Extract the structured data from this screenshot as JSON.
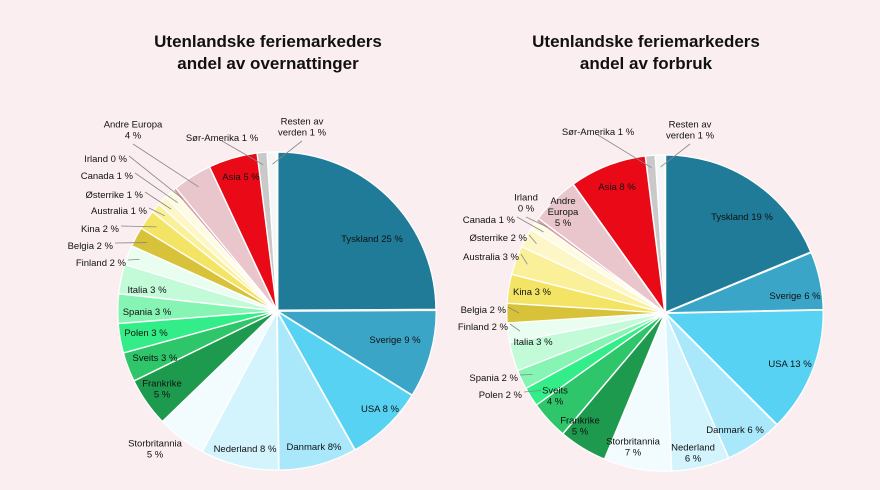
{
  "chart_data": [
    {
      "type": "pie",
      "title": "Utenlandske feriemarkeders andel av overnattinger",
      "title_lines": [
        "Utenlandske feriemarkeders",
        "andel av overnattinger"
      ],
      "slices": [
        {
          "name": "Tyskland",
          "value": 25,
          "label": [
            "Tyskland 25 %"
          ],
          "color": "#1f7b98",
          "text_color": "#ffffff"
        },
        {
          "name": "Sverige",
          "value": 9,
          "label": [
            "Sverige 9 %"
          ],
          "color": "#3aa5c6",
          "text_color": "#ffffff"
        },
        {
          "name": "USA",
          "value": 8,
          "label": [
            "USA 8 %"
          ],
          "color": "#57d2f2",
          "text_color": "#111111"
        },
        {
          "name": "Danmark",
          "value": 8,
          "label": [
            "Danmark 8%"
          ],
          "color": "#a9e8fb",
          "text_color": "#111111"
        },
        {
          "name": "Nederland",
          "value": 8,
          "label": [
            "Nederland 8 %"
          ],
          "color": "#d3f3fd",
          "text_color": "#111111"
        },
        {
          "name": "Storbritannia",
          "value": 5,
          "label": [
            "Storbritannia",
            "5 %"
          ],
          "color": "#f2fbfe",
          "text_color": "#111111"
        },
        {
          "name": "Frankrike",
          "value": 5,
          "label": [
            "Frankrike",
            "5 %"
          ],
          "color": "#1e9a4e",
          "text_color": "#ffffff"
        },
        {
          "name": "Sveits",
          "value": 3,
          "label": [
            "Sveits 3 %"
          ],
          "color": "#2fc56a",
          "text_color": "#ffffff"
        },
        {
          "name": "Polen",
          "value": 3,
          "label": [
            "Polen 3 %"
          ],
          "color": "#33ee88",
          "text_color": "#111111"
        },
        {
          "name": "Spania",
          "value": 3,
          "label": [
            "Spania 3 %"
          ],
          "color": "#86f5b4",
          "text_color": "#111111"
        },
        {
          "name": "Italia",
          "value": 3,
          "label": [
            "Italia 3 %"
          ],
          "color": "#c3fbd9",
          "text_color": "#111111"
        },
        {
          "name": "Finland",
          "value": 2,
          "label": [
            "Finland 2 %"
          ],
          "color": "#eafdf1",
          "text_color": "#111111"
        },
        {
          "name": "Belgia",
          "value": 2,
          "label": [
            "Belgia 2 %"
          ],
          "color": "#d8c23a",
          "text_color": "#111111"
        },
        {
          "name": "Kina",
          "value": 2,
          "label": [
            "Kina 2 %"
          ],
          "color": "#f3e465",
          "text_color": "#111111"
        },
        {
          "name": "Australia",
          "value": 1,
          "label": [
            "Australia 1 %"
          ],
          "color": "#fbf09a",
          "text_color": "#111111"
        },
        {
          "name": "Østerrike",
          "value": 1,
          "label": [
            "Østerrike 1 %"
          ],
          "color": "#fdf6c6",
          "text_color": "#111111"
        },
        {
          "name": "Canada",
          "value": 1,
          "label": [
            "Canada 1 %"
          ],
          "color": "#fefbe3",
          "text_color": "#111111"
        },
        {
          "name": "Irland",
          "value": 0,
          "label": [
            "Irland 0 %"
          ],
          "color": "#d8a0a6",
          "text_color": "#111111"
        },
        {
          "name": "Andre Europa",
          "value": 4,
          "label": [
            "Andre Europa",
            "4 %"
          ],
          "color": "#e8c6cb",
          "text_color": "#111111"
        },
        {
          "name": "Asia",
          "value": 5,
          "label": [
            "Asia 5 %"
          ],
          "color": "#ea0a17",
          "text_color": "#ffffff"
        },
        {
          "name": "Sør-Amerika",
          "value": 1,
          "label": [
            "Sør-Amerika 1 %"
          ],
          "color": "#c9c9c9",
          "text_color": "#111111"
        },
        {
          "name": "Resten av verden",
          "value": 1,
          "label": [
            "Resten av",
            "verden 1 %"
          ],
          "color": "#f6f6f6",
          "text_color": "#111111"
        }
      ]
    },
    {
      "type": "pie",
      "title": "Utenlandske feriemarkeders andel av forbruk",
      "title_lines": [
        "Utenlandske feriemarkeders",
        "andel av forbruk"
      ],
      "slices": [
        {
          "name": "Tyskland",
          "value": 19,
          "label": [
            "Tyskland 19 %"
          ],
          "color": "#1f7b98",
          "text_color": "#ffffff"
        },
        {
          "name": "Sverige",
          "value": 6,
          "label": [
            "Sverige 6 %"
          ],
          "color": "#3aa5c6",
          "text_color": "#ffffff"
        },
        {
          "name": "USA",
          "value": 13,
          "label": [
            "USA 13 %"
          ],
          "color": "#57d2f2",
          "text_color": "#111111"
        },
        {
          "name": "Danmark",
          "value": 6,
          "label": [
            "Danmark 6 %"
          ],
          "color": "#a9e8fb",
          "text_color": "#111111"
        },
        {
          "name": "Nederland",
          "value": 6,
          "label": [
            "Nederland",
            "6 %"
          ],
          "color": "#d3f3fd",
          "text_color": "#111111"
        },
        {
          "name": "Storbritannia",
          "value": 7,
          "label": [
            "Storbritannia",
            "7 %"
          ],
          "color": "#f2fbfe",
          "text_color": "#111111"
        },
        {
          "name": "Frankrike",
          "value": 5,
          "label": [
            "Frankrike",
            "5 %"
          ],
          "color": "#1e9a4e",
          "text_color": "#ffffff"
        },
        {
          "name": "Sveits",
          "value": 4,
          "label": [
            "Sveits",
            "4 %"
          ],
          "color": "#2fc56a",
          "text_color": "#ffffff"
        },
        {
          "name": "Polen",
          "value": 2,
          "label": [
            "Polen 2 %"
          ],
          "color": "#33ee88",
          "text_color": "#111111"
        },
        {
          "name": "Spania",
          "value": 2,
          "label": [
            "Spania 2 %"
          ],
          "color": "#86f5b4",
          "text_color": "#111111"
        },
        {
          "name": "Italia",
          "value": 3,
          "label": [
            "Italia 3 %"
          ],
          "color": "#c3fbd9",
          "text_color": "#111111"
        },
        {
          "name": "Finland",
          "value": 2,
          "label": [
            "Finland 2 %"
          ],
          "color": "#eafdf1",
          "text_color": "#111111"
        },
        {
          "name": "Belgia",
          "value": 2,
          "label": [
            "Belgia 2 %"
          ],
          "color": "#d8c23a",
          "text_color": "#111111"
        },
        {
          "name": "Kina",
          "value": 3,
          "label": [
            "Kina 3 %"
          ],
          "color": "#f3e465",
          "text_color": "#111111"
        },
        {
          "name": "Australia",
          "value": 3,
          "label": [
            "Australia 3 %"
          ],
          "color": "#fbf09a",
          "text_color": "#111111"
        },
        {
          "name": "Østerrike",
          "value": 2,
          "label": [
            "Østerrike 2 %"
          ],
          "color": "#fdf6c6",
          "text_color": "#111111"
        },
        {
          "name": "Canada",
          "value": 1,
          "label": [
            "Canada 1 %"
          ],
          "color": "#fefbe3",
          "text_color": "#111111"
        },
        {
          "name": "Irland",
          "value": 0,
          "label": [
            "Irland",
            "0 %"
          ],
          "color": "#d8a0a6",
          "text_color": "#111111"
        },
        {
          "name": "Andre Europa",
          "value": 5,
          "label": [
            "Andre",
            "Europa",
            "5 %"
          ],
          "color": "#e8c6cb",
          "text_color": "#111111"
        },
        {
          "name": "Asia",
          "value": 8,
          "label": [
            "Asia 8 %"
          ],
          "color": "#ea0a17",
          "text_color": "#ffffff"
        },
        {
          "name": "Sør-Amerika",
          "value": 1,
          "label": [
            "Sør-Amerika 1 %"
          ],
          "color": "#c9c9c9",
          "text_color": "#111111"
        },
        {
          "name": "Resten av verden",
          "value": 1,
          "label": [
            "Resten av",
            "verden 1 %"
          ],
          "color": "#f6f6f6",
          "text_color": "#111111"
        }
      ]
    }
  ]
}
